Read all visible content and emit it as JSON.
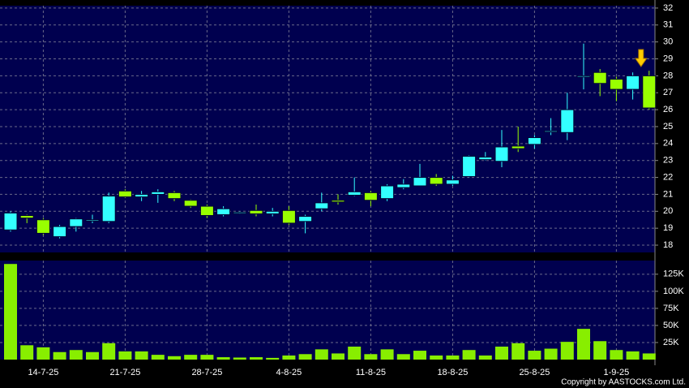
{
  "chart_data": [
    {
      "type": "candlestick",
      "open": [
        18.9,
        19.75,
        19.5,
        18.5,
        19.1,
        19.45,
        19.4,
        21.2,
        20.85,
        21.0,
        21.1,
        20.65,
        20.3,
        19.8,
        19.95,
        20.05,
        19.85,
        20.05,
        19.4,
        20.15,
        20.65,
        20.95,
        21.1,
        20.75,
        21.4,
        21.5,
        22.0,
        21.6,
        22.05,
        23.05,
        22.95,
        23.85,
        23.95,
        24.7,
        24.65,
        28.0,
        28.2,
        27.8,
        27.2,
        28.0
      ],
      "high": [
        20.0,
        19.8,
        19.6,
        19.2,
        19.6,
        19.8,
        21.1,
        21.3,
        21.2,
        21.3,
        21.2,
        20.7,
        20.4,
        20.3,
        20.0,
        20.4,
        20.2,
        20.3,
        19.8,
        21.1,
        21.0,
        22.0,
        21.2,
        21.6,
        21.9,
        22.8,
        22.2,
        22.1,
        23.3,
        23.5,
        24.8,
        25.0,
        24.5,
        25.5,
        27.0,
        29.9,
        28.4,
        27.95,
        28.2,
        28.3
      ],
      "low": [
        18.8,
        19.3,
        18.6,
        18.4,
        18.8,
        19.3,
        19.3,
        20.8,
        20.6,
        20.5,
        20.6,
        20.2,
        19.6,
        19.7,
        19.85,
        19.7,
        19.7,
        19.2,
        18.7,
        20.0,
        20.4,
        20.9,
        20.3,
        20.6,
        21.3,
        21.5,
        21.5,
        21.5,
        22.0,
        23.0,
        22.6,
        23.5,
        23.7,
        24.5,
        24.2,
        27.2,
        26.8,
        26.5,
        26.6,
        26.0
      ],
      "close": [
        19.9,
        19.6,
        18.7,
        19.1,
        19.55,
        19.5,
        20.9,
        20.85,
        21.0,
        21.15,
        20.75,
        20.3,
        19.75,
        20.15,
        19.95,
        19.85,
        20.0,
        19.3,
        19.7,
        20.5,
        20.55,
        21.15,
        20.65,
        21.5,
        21.6,
        22.0,
        21.6,
        21.85,
        23.25,
        23.2,
        23.8,
        23.7,
        24.35,
        24.75,
        26.0,
        28.0,
        27.55,
        27.2,
        28.0,
        26.1
      ],
      "up_color": "#33ffff",
      "down_color": "#99ff00",
      "ylim": [
        17.57,
        32.14
      ],
      "yticks": [
        18,
        19,
        20,
        21,
        22,
        23,
        24,
        25,
        26,
        27,
        28,
        29,
        30,
        31,
        32
      ],
      "grid": true
    },
    {
      "type": "bar",
      "categories": [
        null,
        null,
        "14-7-25",
        null,
        null,
        null,
        null,
        "21-7-25",
        null,
        null,
        null,
        null,
        "28-7-25",
        null,
        null,
        null,
        null,
        "4-8-25",
        null,
        null,
        null,
        null,
        "11-8-25",
        null,
        null,
        null,
        null,
        "18-8-25",
        null,
        null,
        null,
        null,
        "25-8-25",
        null,
        null,
        null,
        null,
        "1-9-25",
        null,
        null
      ],
      "values": [
        140000,
        21000,
        18000,
        11000,
        14000,
        11000,
        24000,
        12000,
        12000,
        7000,
        5000,
        7000,
        7000,
        3500,
        3000,
        3500,
        2500,
        6000,
        8000,
        15000,
        9000,
        19000,
        8000,
        15000,
        8000,
        13000,
        6000,
        6000,
        14000,
        6000,
        19000,
        24000,
        13000,
        16000,
        26000,
        45000,
        27000,
        14000,
        12000,
        9000
      ],
      "color": "#88ee00",
      "ylim": [
        0,
        145000
      ],
      "yticks": [
        {
          "value": 25000,
          "label": "25K"
        },
        {
          "value": 50000,
          "label": "50K"
        },
        {
          "value": 75000,
          "label": "75K"
        },
        {
          "value": 100000,
          "label": "100K"
        },
        {
          "value": 125000,
          "label": "125K"
        }
      ],
      "grid": true,
      "footnote": "Copyright by AASTOCKS.com Ltd."
    }
  ]
}
